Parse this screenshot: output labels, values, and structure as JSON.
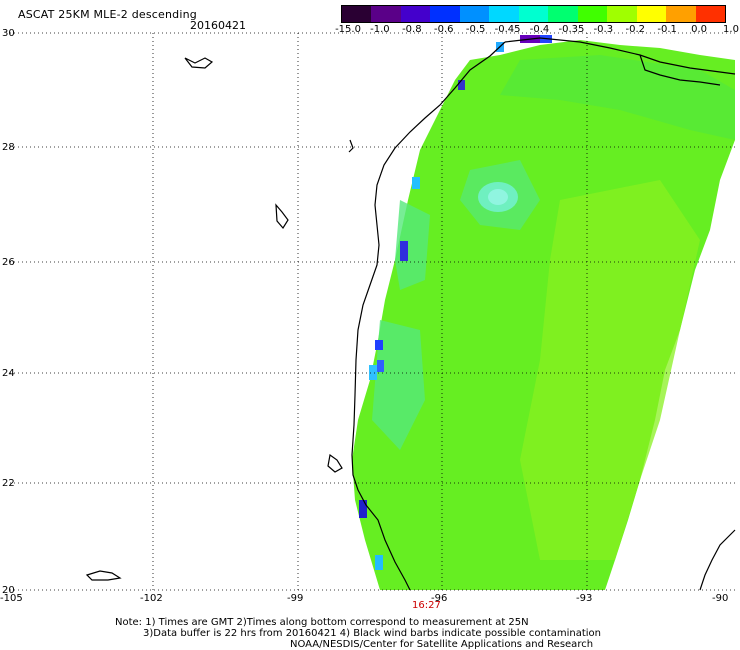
{
  "title": "ASCAT 25KM MLE-2 descending",
  "date": "20160421",
  "colorbar": {
    "labels": [
      "-15.0",
      "-1.0",
      "-0.8",
      "-0.6",
      "-0.5",
      "-0.45",
      "-0.4",
      "-0.35",
      "-0.3",
      "-0.2",
      "-0.1",
      "0.0",
      "1.0"
    ],
    "colors": [
      "#2a0033",
      "#5a0088",
      "#4400cc",
      "#0030ff",
      "#0090ff",
      "#00d8ff",
      "#00ffd0",
      "#00ff70",
      "#40ff00",
      "#a0ff00",
      "#ffff00",
      "#ffa000",
      "#ff3000"
    ]
  },
  "axes": {
    "lon_labels": [
      "-105",
      "-102",
      "-99",
      "-96",
      "-93",
      "-90"
    ],
    "lat_labels": [
      "30",
      "28",
      "26",
      "24",
      "22",
      "20"
    ]
  },
  "time_label": "16:27",
  "notes": [
    "Note: 1) Times are GMT 2)Times along bottom correspond to measurement at 25N",
    "3)Data buffer is 22 hrs from 20160421 4) Black wind barbs indicate possible contamination",
    "NOAA/NESDIS/Center for Satellite Applications and Research"
  ]
}
